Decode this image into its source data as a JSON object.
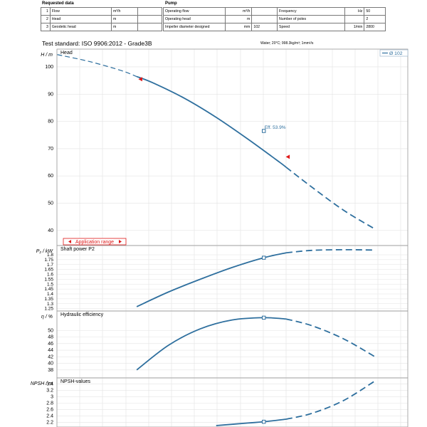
{
  "requested": {
    "title": "Requested data",
    "rows": [
      {
        "no": "1",
        "label": "Flow",
        "unit": "m³/h"
      },
      {
        "no": "2",
        "label": "Head",
        "unit": "m"
      },
      {
        "no": "3",
        "label": "Geodetic head",
        "unit": "m"
      }
    ]
  },
  "pump": {
    "title": "Pump",
    "left_rows": [
      {
        "label": "Operating flow",
        "unit": "m³/h",
        "value": ""
      },
      {
        "label": "Operating head",
        "unit": "m",
        "value": ""
      },
      {
        "label": "Impeller diameter designed",
        "unit": "mm",
        "value": "102"
      }
    ],
    "right_rows": [
      {
        "label": "Frequency",
        "unit": "Hz",
        "value": "50"
      },
      {
        "label": "Number of poles",
        "unit": "",
        "value": "2"
      },
      {
        "label": "Speed",
        "unit": "1/min",
        "value": "2800"
      }
    ]
  },
  "test_standard": "Test standard: ISO 9906:2012 - Grade3B",
  "water_note": "Water; 20°C; 998.3kg/m³; 1mm²/s",
  "chart_data": [
    {
      "type": "line",
      "title": "Head",
      "ylabel": "H / m",
      "ylim": [
        35,
        106
      ],
      "yticks": [
        "100",
        "90",
        "80",
        "70",
        "60",
        "50",
        "40"
      ],
      "tick_values": [
        100,
        90,
        80,
        70,
        60,
        50,
        40
      ],
      "legend": "Ø 102",
      "series": [
        {
          "name": "Ø 102",
          "x": [
            0,
            0.1,
            0.2,
            0.3,
            0.4,
            0.5,
            0.6,
            0.7,
            0.8,
            0.9,
            1.0
          ],
          "values": [
            104.5,
            102,
            98.7,
            94.2,
            88.5,
            81.5,
            73.5,
            65,
            56,
            47.5,
            40.5
          ]
        }
      ],
      "solid_range": [
        0.25,
        0.72
      ],
      "operating_point": {
        "x": 0.65,
        "y": 76.5,
        "label": "Eff.  53.9%"
      },
      "range_markers": [
        {
          "x": 0.263,
          "y": 95.5
        },
        {
          "x": 0.727,
          "y": 67
        }
      ],
      "application_range": "Application range"
    },
    {
      "type": "line",
      "title": "Shaft power P2",
      "ylabel": "P₂ / kW",
      "ylim": [
        1.24,
        1.88
      ],
      "yticks": [
        "1.8",
        "1.75",
        "1.7",
        "1.65",
        "1.6",
        "1.55",
        "1.5",
        "1.45",
        "1.4",
        "1.35",
        "1.3",
        "1.25"
      ],
      "tick_values": [
        1.8,
        1.75,
        1.7,
        1.65,
        1.6,
        1.55,
        1.5,
        1.45,
        1.4,
        1.35,
        1.3,
        1.25
      ],
      "series": [
        {
          "name": "Ø 102",
          "x": [
            0.25,
            0.35,
            0.45,
            0.55,
            0.65,
            0.72,
            0.8,
            0.9,
            1.0
          ],
          "values": [
            1.27,
            1.42,
            1.55,
            1.67,
            1.77,
            1.82,
            1.845,
            1.852,
            1.848
          ]
        }
      ],
      "solid_range": [
        0.25,
        0.72
      ],
      "operating_point": {
        "x": 0.65,
        "y": 1.77
      }
    },
    {
      "type": "line",
      "title": "Hydraulic efficiency",
      "ylabel": "η / %",
      "ylim": [
        36,
        55.5
      ],
      "yticks": [
        "50",
        "48",
        "46",
        "44",
        "42",
        "40",
        "38"
      ],
      "tick_values": [
        50,
        48,
        46,
        44,
        42,
        40,
        38
      ],
      "series": [
        {
          "name": "Ø 102",
          "x": [
            0.25,
            0.35,
            0.45,
            0.55,
            0.65,
            0.72,
            0.8,
            0.9,
            1.0
          ],
          "values": [
            38,
            45.5,
            50.5,
            53.2,
            53.9,
            53.5,
            51.5,
            47.5,
            42
          ]
        }
      ],
      "solid_range": [
        0.25,
        0.72
      ],
      "operating_point": {
        "x": 0.65,
        "y": 53.9
      }
    },
    {
      "type": "line",
      "title": "NPSH-values",
      "ylabel": "NPSH / m",
      "ylim": [
        2.1,
        3.55
      ],
      "yticks": [
        "3.4",
        "3.2",
        "3",
        "2.8",
        "2.6",
        "2.4",
        "2.2"
      ],
      "tick_values": [
        3.4,
        3.2,
        3.0,
        2.8,
        2.6,
        2.4,
        2.2
      ],
      "series": [
        {
          "name": "Ø 102",
          "x": [
            0.5,
            0.6,
            0.65,
            0.72,
            0.8,
            0.9,
            1.0
          ],
          "values": [
            2.1,
            2.18,
            2.22,
            2.3,
            2.48,
            2.88,
            3.5
          ]
        }
      ],
      "solid_range": [
        0.5,
        0.72
      ],
      "operating_point": {
        "x": 0.65,
        "y": 2.22
      }
    }
  ]
}
